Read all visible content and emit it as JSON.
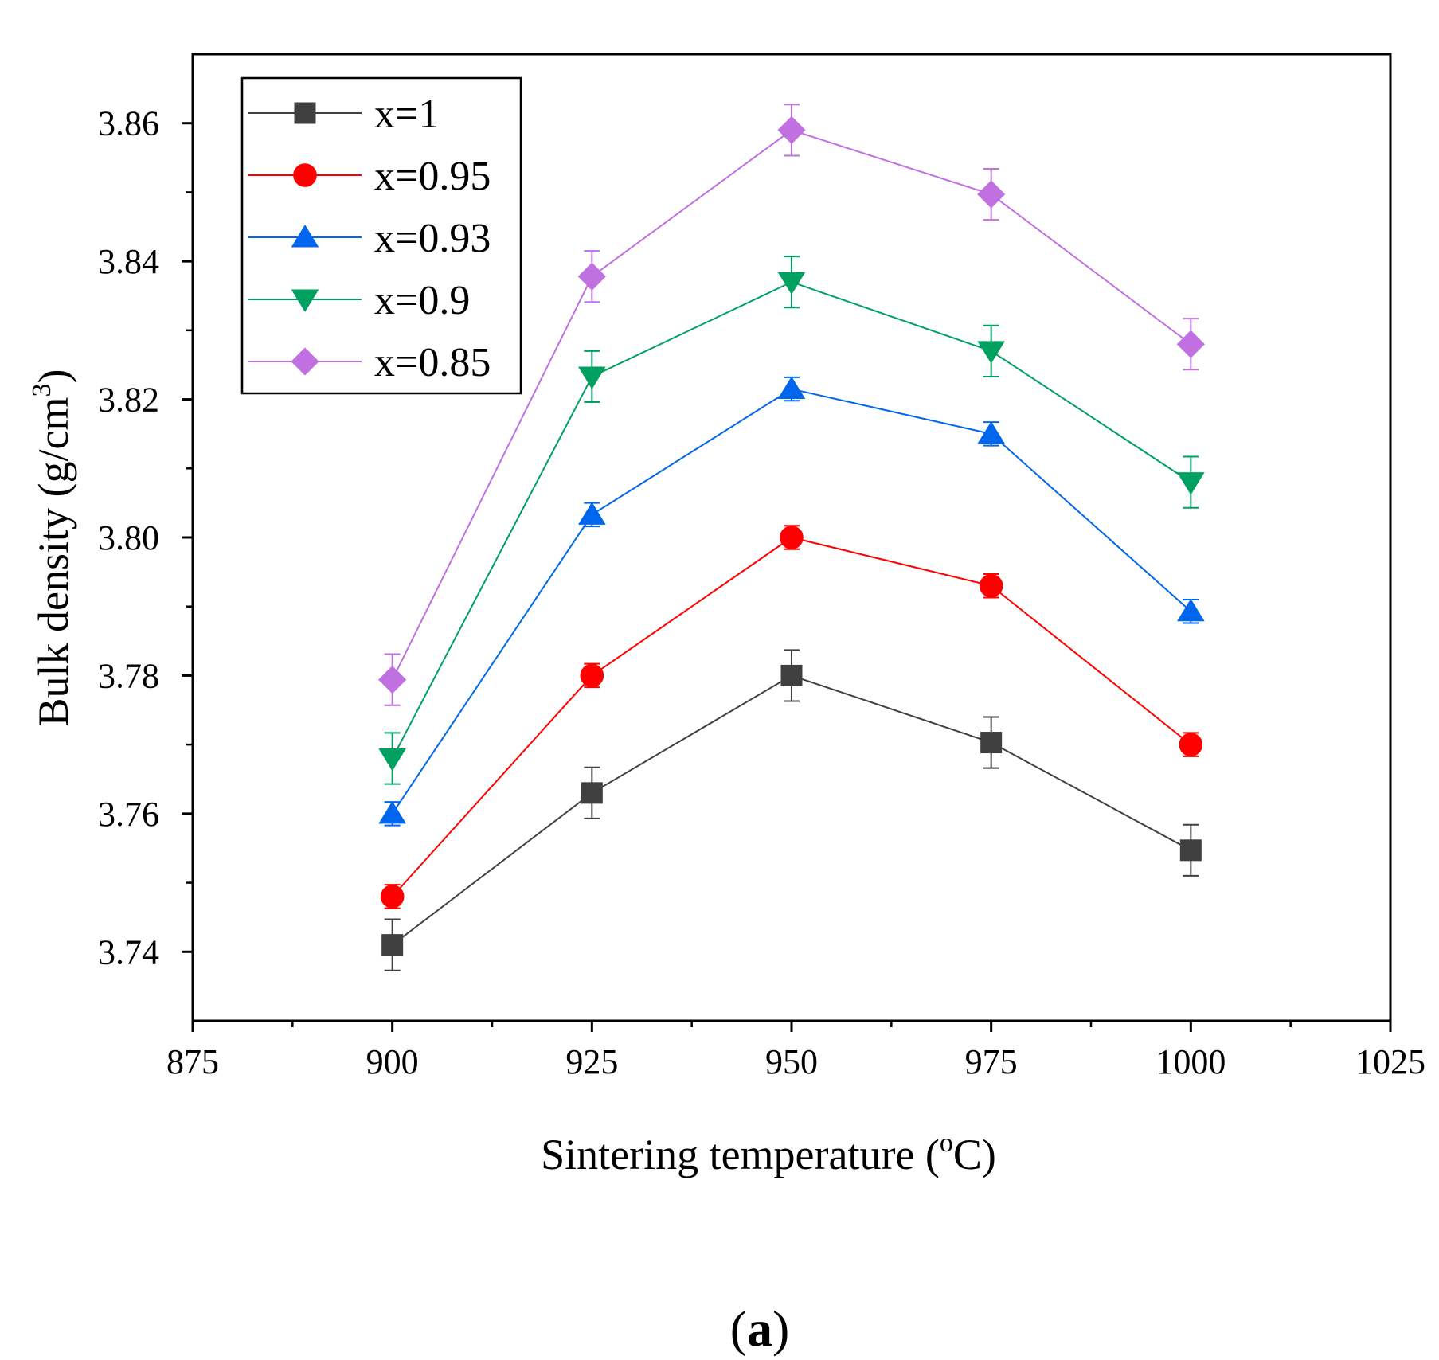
{
  "chart_data": {
    "type": "line",
    "xlabel": "Sintering temperature (",
    "xlabel_unit_sup": "o",
    "xlabel_unit_tail": "C)",
    "ylabel": "Bulk density (g/cm",
    "ylabel_sup": "3",
    "ylabel_tail": ")",
    "panel_label_open": "(",
    "panel_label_letter": "a",
    "panel_label_close": ")",
    "xlim": [
      875,
      1025
    ],
    "ylim": [
      3.73,
      3.87
    ],
    "x_ticks": [
      875,
      900,
      925,
      950,
      975,
      1000,
      1025
    ],
    "x_tick_labels": [
      "875",
      "900",
      "925",
      "950",
      "975",
      "1000",
      "1025"
    ],
    "y_ticks": [
      3.74,
      3.76,
      3.78,
      3.8,
      3.82,
      3.84,
      3.86
    ],
    "y_tick_labels": [
      "3.74",
      "3.76",
      "3.78",
      "3.80",
      "3.82",
      "3.84",
      "3.86"
    ],
    "x_minor_ticks": [
      887.5,
      912.5,
      937.5,
      962.5,
      987.5,
      1012.5
    ],
    "y_minor_ticks": [
      3.75,
      3.77,
      3.79,
      3.81,
      3.83,
      3.85
    ],
    "grid": false,
    "legend_position": "top-left",
    "x": [
      900,
      925,
      950,
      975,
      1000
    ],
    "series": [
      {
        "name": "x=1",
        "color": "#404040",
        "marker": "square",
        "values": [
          3.741,
          3.763,
          3.78,
          3.7703,
          3.7547
        ],
        "errors": [
          0.0037,
          0.0037,
          0.0037,
          0.0037,
          0.0037
        ]
      },
      {
        "name": "x=0.95",
        "color": "#ff0000",
        "marker": "circle",
        "values": [
          3.748,
          3.78,
          3.8,
          3.793,
          3.77
        ],
        "errors": [
          0.0017,
          0.0017,
          0.0017,
          0.0017,
          0.0017
        ]
      },
      {
        "name": "x=0.93",
        "color": "#0066ee",
        "marker": "triangle-up",
        "values": [
          3.76,
          3.8033,
          3.8215,
          3.815,
          3.7893
        ],
        "errors": [
          0.0017,
          0.0017,
          0.0017,
          0.0017,
          0.0017
        ]
      },
      {
        "name": "x=0.9",
        "color": "#00a060",
        "marker": "triangle-down",
        "values": [
          3.768,
          3.8233,
          3.837,
          3.827,
          3.808
        ],
        "errors": [
          0.0037,
          0.0037,
          0.0037,
          0.0037,
          0.0037
        ]
      },
      {
        "name": "x=0.85",
        "color": "#c070e0",
        "marker": "diamond",
        "values": [
          3.7794,
          3.8378,
          3.859,
          3.8497,
          3.828
        ],
        "errors": [
          0.0037,
          0.0037,
          0.0037,
          0.0037,
          0.0037
        ]
      }
    ]
  }
}
